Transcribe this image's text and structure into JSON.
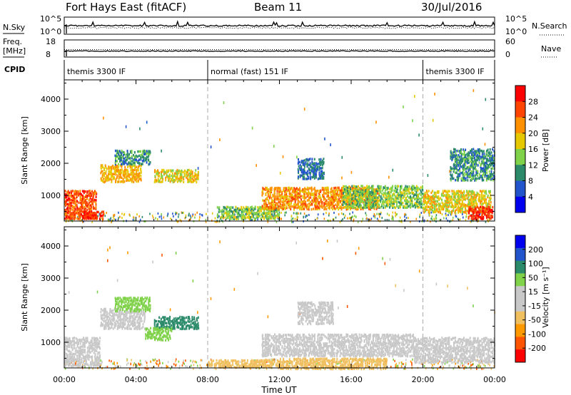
{
  "header": {
    "station": "Fort Hays East (fitACF)",
    "beam": "Beam 11",
    "date": "30/Jul/2016"
  },
  "strips": {
    "nsky_label": "N.Sky",
    "nsky_ticks": [
      "10^5",
      "10^0"
    ],
    "nsearch_label": "N.Search",
    "nsearch_ticks": [
      "10^5",
      "10^0"
    ],
    "freq_label": "Freq.",
    "freq_unit": "[MHz]",
    "freq_ticks": [
      "18",
      "8"
    ],
    "nave_label": "Nave",
    "nave_ticks": [
      "60",
      "0"
    ],
    "cpid_label": "CPID",
    "cpid_segments": [
      {
        "label": "themis 3300 IF",
        "start": 0,
        "end": 8
      },
      {
        "label": "normal (fast) 151 IF",
        "start": 8,
        "end": 20
      },
      {
        "label": "themis 3300 IF",
        "start": 20,
        "end": 24
      }
    ]
  },
  "chart_data": [
    {
      "type": "heatmap",
      "title": "",
      "xlabel": "Time UT",
      "ylabel": "Slant Range [km]",
      "xlim": [
        0,
        24
      ],
      "ylim": [
        200,
        4600
      ],
      "x_ticks": [
        "00:00",
        "04:00",
        "08:00",
        "12:00",
        "16:00",
        "20:00",
        "00:00"
      ],
      "y_ticks": [
        1000,
        2000,
        3000,
        4000
      ],
      "colorbar": {
        "label": "Power [dB]",
        "ticks": [
          "28",
          "24",
          "20",
          "16",
          "12",
          "8",
          "4"
        ],
        "colors": [
          "#0000ee",
          "#2255cc",
          "#2a8a6a",
          "#7fd24a",
          "#e6c800",
          "#ff9000",
          "#ff4400",
          "#ff0000"
        ],
        "range": [
          0,
          32
        ]
      },
      "regions": [
        {
          "t0": 0.0,
          "t1": 1.8,
          "r0": 300,
          "r1": 1200,
          "value": 26
        },
        {
          "t0": 1.0,
          "t1": 2.2,
          "r0": 300,
          "r1": 550,
          "value": 28
        },
        {
          "t0": 2.0,
          "t1": 4.3,
          "r0": 1450,
          "r1": 2000,
          "value": 20
        },
        {
          "t0": 2.8,
          "t1": 4.8,
          "r0": 2000,
          "r1": 2450,
          "value": 10
        },
        {
          "t0": 5.0,
          "t1": 7.5,
          "r0": 1450,
          "r1": 1850,
          "value": 18
        },
        {
          "t0": 8.5,
          "t1": 12.0,
          "r0": 300,
          "r1": 700,
          "value": 14
        },
        {
          "t0": 11.0,
          "t1": 17.5,
          "r0": 600,
          "r1": 1300,
          "value": 22
        },
        {
          "t0": 15.5,
          "t1": 20.0,
          "r0": 650,
          "r1": 1350,
          "value": 14
        },
        {
          "t0": 20.0,
          "t1": 23.8,
          "r0": 500,
          "r1": 1200,
          "value": 18
        },
        {
          "t0": 22.5,
          "t1": 23.9,
          "r0": 300,
          "r1": 700,
          "value": 28
        },
        {
          "t0": 13.0,
          "t1": 14.5,
          "r0": 1550,
          "r1": 2200,
          "value": 8
        },
        {
          "t0": 21.5,
          "t1": 24.0,
          "r0": 1500,
          "r1": 2500,
          "value": 10
        }
      ]
    },
    {
      "type": "heatmap",
      "title": "",
      "xlabel": "Time UT",
      "ylabel": "Slant Range [km]",
      "xlim": [
        0,
        24
      ],
      "ylim": [
        200,
        4600
      ],
      "x_ticks": [
        "00:00",
        "04:00",
        "08:00",
        "12:00",
        "16:00",
        "20:00",
        "00:00"
      ],
      "y_ticks": [
        1000,
        2000,
        3000,
        4000
      ],
      "colorbar": {
        "label": "Velocity [m s⁻¹]",
        "ticks": [
          "200",
          "100",
          "50",
          "15",
          "-15",
          "-50",
          "-100",
          "-200"
        ],
        "colors": [
          "#ff0000",
          "#ff5500",
          "#ff9900",
          "#f0c060",
          "#c8c8c8",
          "#c8c8c8",
          "#7fd24a",
          "#2a8a6a",
          "#2255cc",
          "#0000ee"
        ],
        "range": [
          -250,
          250
        ]
      },
      "regions": [
        {
          "t0": 0.0,
          "t1": 2.0,
          "r0": 300,
          "r1": 1200,
          "value": 0
        },
        {
          "t0": 2.0,
          "t1": 4.5,
          "r0": 1450,
          "r1": 2100,
          "value": 0
        },
        {
          "t0": 2.8,
          "t1": 4.8,
          "r0": 2000,
          "r1": 2450,
          "value": 30
        },
        {
          "t0": 5.0,
          "t1": 7.5,
          "r0": 1450,
          "r1": 1850,
          "value": 90
        },
        {
          "t0": 4.5,
          "t1": 6.0,
          "r0": 1100,
          "r1": 1500,
          "value": 40
        },
        {
          "t0": 8.0,
          "t1": 12.0,
          "r0": 250,
          "r1": 500,
          "value": -40
        },
        {
          "t0": 11.0,
          "t1": 19.5,
          "r0": 600,
          "r1": 1300,
          "value": 0
        },
        {
          "t0": 12.0,
          "t1": 18.0,
          "r0": 200,
          "r1": 550,
          "value": -35
        },
        {
          "t0": 19.5,
          "t1": 24.0,
          "r0": 400,
          "r1": 1200,
          "value": 0
        },
        {
          "t0": 13.0,
          "t1": 15.0,
          "r0": 1600,
          "r1": 2300,
          "value": 0
        }
      ]
    }
  ]
}
